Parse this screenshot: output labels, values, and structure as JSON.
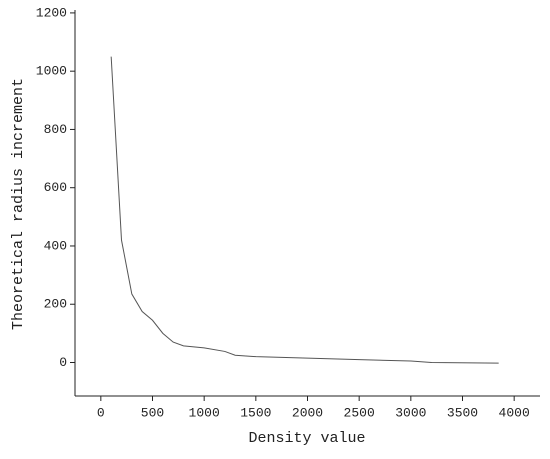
{
  "chart_data": {
    "type": "line",
    "x_label": "Density value",
    "y_label": "Theoretical radius increment",
    "x": [
      100,
      200,
      300,
      400,
      500,
      600,
      700,
      800,
      1000,
      1200,
      1300,
      1500,
      2000,
      2500,
      3000,
      3200,
      3850
    ],
    "series": [
      {
        "color": "#555555",
        "values": [
          1050,
          420,
          235,
          175,
          145,
          100,
          70,
          57,
          50,
          38,
          25,
          20,
          15,
          10,
          5,
          0,
          -2
        ]
      }
    ],
    "xlim": [
      -250,
      4250
    ],
    "xticks": [
      0,
      500,
      1000,
      1500,
      2000,
      2500,
      3000,
      3500,
      4000
    ],
    "ylim": [
      -115,
      1210
    ],
    "yticks": [
      0,
      200,
      400,
      600,
      800,
      1000,
      1200
    ]
  }
}
